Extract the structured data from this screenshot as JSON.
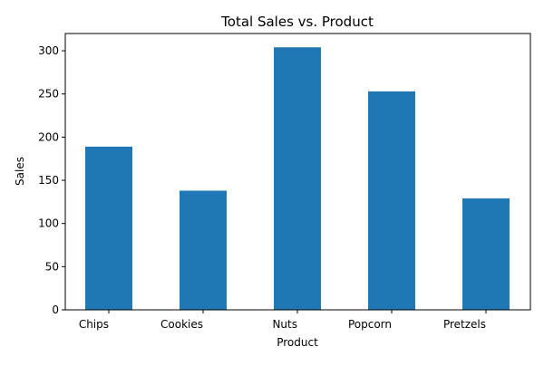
{
  "chart_data": {
    "type": "bar",
    "title": "Total Sales vs. Product",
    "xlabel": "Product",
    "ylabel": "Sales",
    "categories": [
      "Chips",
      "Cookies",
      "Nuts",
      "Popcorn",
      "Pretzels"
    ],
    "values": [
      189,
      138,
      304,
      253,
      129
    ],
    "ylim": [
      0,
      320
    ],
    "yticks": [
      0,
      50,
      100,
      150,
      200,
      250,
      300
    ],
    "grid": false,
    "bar_color": "#1f77b4"
  }
}
